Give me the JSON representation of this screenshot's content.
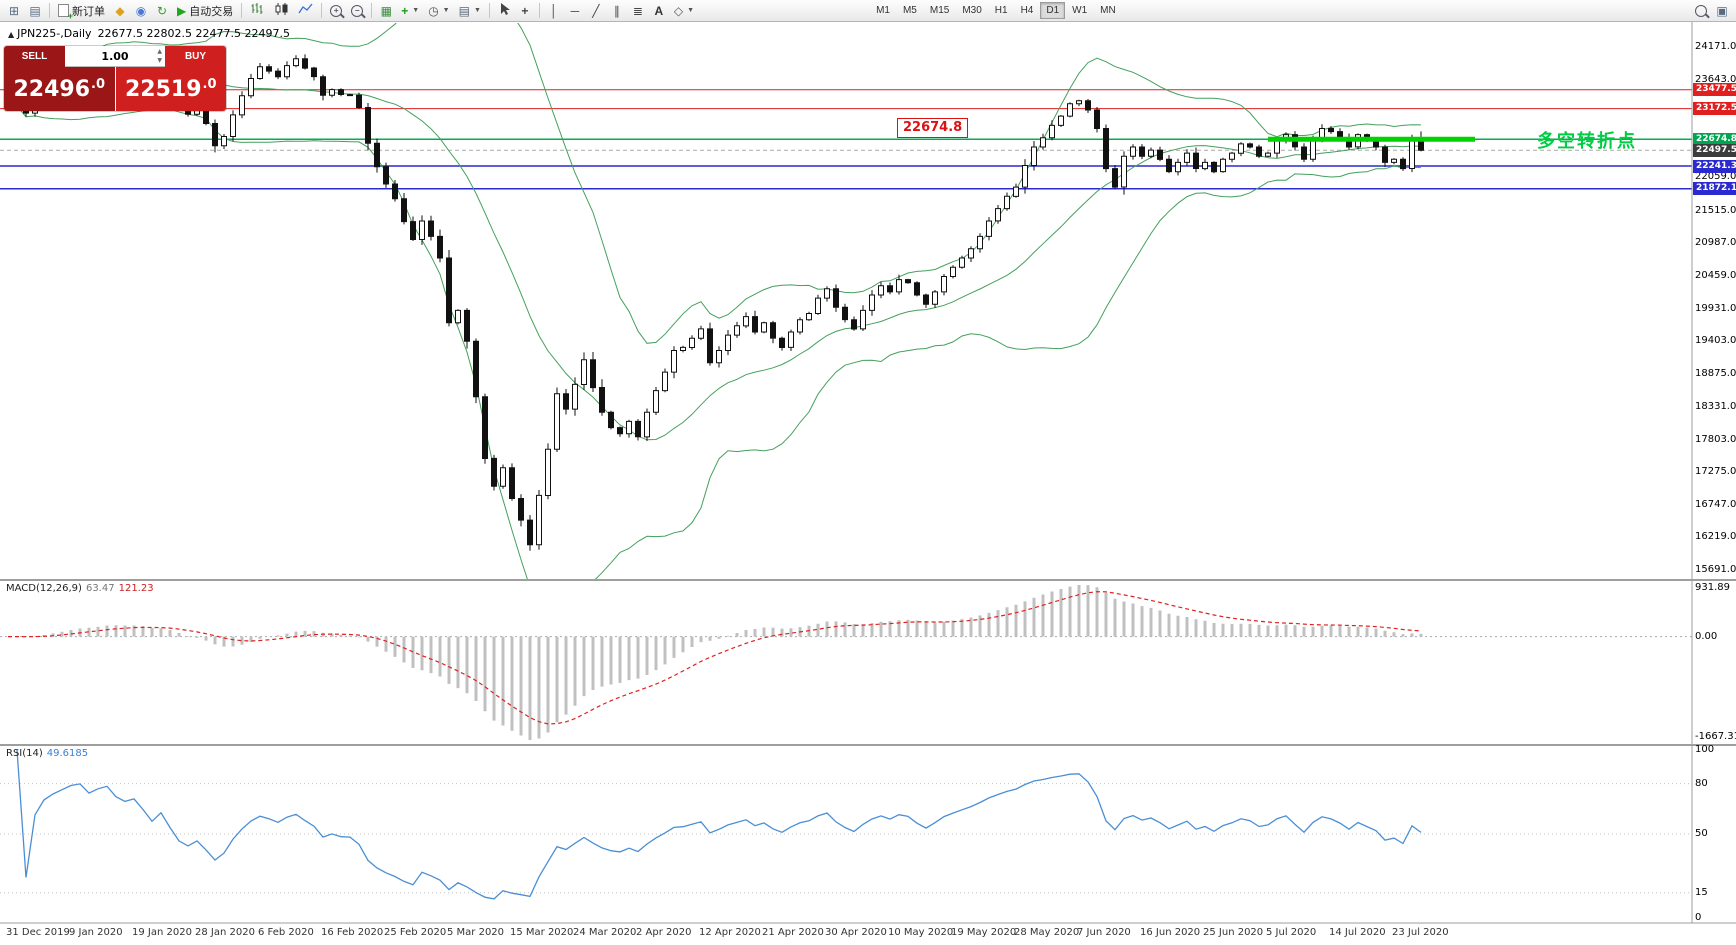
{
  "toolbar": {
    "new_order": "新订单",
    "auto_trading": "自动交易",
    "text_tool": "A",
    "timeframes": [
      "M1",
      "M5",
      "M15",
      "M30",
      "H1",
      "H4",
      "D1",
      "W1",
      "MN"
    ],
    "active_timeframe": "D1"
  },
  "chart": {
    "title_symbol": "JPN225-,Daily",
    "title_ohlc": "22677.5 22802.5 22477.5 22497.5",
    "callout": "22674.8",
    "annotation": "多空转折点"
  },
  "order_panel": {
    "sell_label": "SELL",
    "buy_label": "BUY",
    "volume": "1.00",
    "sell_price_main": "22496",
    "sell_price_frac": ".0",
    "buy_price_main": "22519",
    "buy_price_frac": ".0"
  },
  "chart_data": {
    "type": "candlestick",
    "symbol": "JPN225-",
    "period": "Daily",
    "y_range": [
      15691,
      24171
    ],
    "y_axis_labels": [
      "24171.0",
      "23643.0",
      "22059.0",
      "21515.0",
      "20987.0",
      "20459.0",
      "19931.0",
      "19403.0",
      "18875.0",
      "18331.0",
      "17803.0",
      "17275.0",
      "16747.0",
      "16219.0",
      "15691.0"
    ],
    "price_badges": [
      {
        "label": "23477.5",
        "price": 23477.5,
        "bg": "#e02020"
      },
      {
        "label": "23172.5",
        "price": 23172.5,
        "bg": "#e02020"
      },
      {
        "label": "22674.8",
        "price": 22674.8,
        "bg": "#00a651"
      },
      {
        "label": "22497.5",
        "price": 22497.5,
        "bg": "#3c3c3c"
      },
      {
        "label": "22241.3",
        "price": 22241.3,
        "bg": "#2a2ad0"
      },
      {
        "label": "21872.1",
        "price": 21872.1,
        "bg": "#2a2ad0"
      }
    ],
    "h_lines": [
      {
        "price": 23477.5,
        "color": "#e02020",
        "width": 1,
        "style": "solid"
      },
      {
        "price": 23172.5,
        "color": "#e02020",
        "width": 1,
        "style": "solid"
      },
      {
        "price": 22674.8,
        "color": "#00b050",
        "width": 1.5,
        "style": "solid"
      },
      {
        "price": 22497.5,
        "color": "#aaaaaa",
        "width": 1,
        "style": "dashed"
      },
      {
        "price": 22241.3,
        "color": "#2a2ad0",
        "width": 1.5,
        "style": "solid"
      },
      {
        "price": 21872.1,
        "color": "#2a2ad0",
        "width": 1.5,
        "style": "solid"
      }
    ],
    "trend_segment": {
      "price": 22674.8,
      "from_index": 140,
      "to_index": 163,
      "color": "#00d400",
      "width": 5
    },
    "x_labels": [
      "31 Dec 2019",
      "9 Jan 2020",
      "19 Jan 2020",
      "28 Jan 2020",
      "6 Feb 2020",
      "16 Feb 2020",
      "25 Feb 2020",
      "5 Mar 2020",
      "15 Mar 2020",
      "24 Mar 2020",
      "2 Apr 2020",
      "12 Apr 2020",
      "21 Apr 2020",
      "30 Apr 2020",
      "10 May 2020",
      "19 May 2020",
      "28 May 2020",
      "7 Jun 2020",
      "16 Jun 2020",
      "25 Jun 2020",
      "5 Jul 2020",
      "14 Jul 2020",
      "23 Jul 2020"
    ],
    "label_every": 7,
    "closes": [
      23250,
      23320,
      23100,
      23380,
      23550,
      23650,
      23740,
      23850,
      23900,
      23820,
      23950,
      24040,
      23920,
      23860,
      23940,
      23790,
      23600,
      23820,
      23540,
      23220,
      23080,
      23190,
      22930,
      22570,
      22720,
      23070,
      23380,
      23660,
      23850,
      23780,
      23690,
      23870,
      23980,
      23830,
      23690,
      23390,
      23480,
      23400,
      23390,
      23190,
      22610,
      22230,
      21950,
      21710,
      21340,
      21050,
      21350,
      21100,
      20750,
      19700,
      19900,
      19400,
      18500,
      17500,
      17050,
      17350,
      16850,
      16500,
      16100,
      16900,
      17650,
      18550,
      18300,
      18700,
      19100,
      18650,
      18250,
      18000,
      17900,
      18100,
      17850,
      18250,
      18600,
      18900,
      19250,
      19300,
      19450,
      19600,
      19050,
      19250,
      19500,
      19650,
      19800,
      19550,
      19700,
      19450,
      19300,
      19550,
      19750,
      19850,
      20100,
      20250,
      19950,
      19750,
      19600,
      19900,
      20150,
      20300,
      20200,
      20400,
      20350,
      20150,
      20000,
      20200,
      20450,
      20600,
      20750,
      20900,
      21100,
      21350,
      21550,
      21750,
      21900,
      22250,
      22550,
      22700,
      22900,
      23050,
      23250,
      23300,
      23150,
      22850,
      22200,
      21900,
      22400,
      22550,
      22400,
      22500,
      22350,
      22150,
      22300,
      22450,
      22200,
      22300,
      22150,
      22350,
      22450,
      22600,
      22550,
      22400,
      22450,
      22650,
      22750,
      22550,
      22350,
      22650,
      22850,
      22800,
      22700,
      22550,
      22750,
      22650,
      22550,
      22300,
      22350,
      22200,
      22677.5,
      22497.5
    ],
    "last_candle": {
      "open": 22677.5,
      "high": 22802.5,
      "low": 22477.5,
      "close": 22497.5
    },
    "indicators": {
      "bollinger": {
        "period": 20,
        "deviation": 2,
        "color": "#44a05c"
      },
      "macd": {
        "name": "MACD(12,26,9)",
        "value_main": "63.47",
        "value_signal": "121.23",
        "axis_labels": [
          "931.89",
          "0.00",
          "-1667.31"
        ],
        "range": [
          -1667.31,
          931.89
        ],
        "hist_color": "#c0c0c0",
        "signal_color": "#e02020"
      },
      "rsi": {
        "name": "RSI(14)",
        "value": "49.6185",
        "axis_labels": [
          "100",
          "80",
          "50",
          "15",
          "0"
        ],
        "levels": [
          80,
          50,
          15
        ],
        "color": "#4a8fd4",
        "range": [
          0,
          100
        ]
      }
    }
  }
}
